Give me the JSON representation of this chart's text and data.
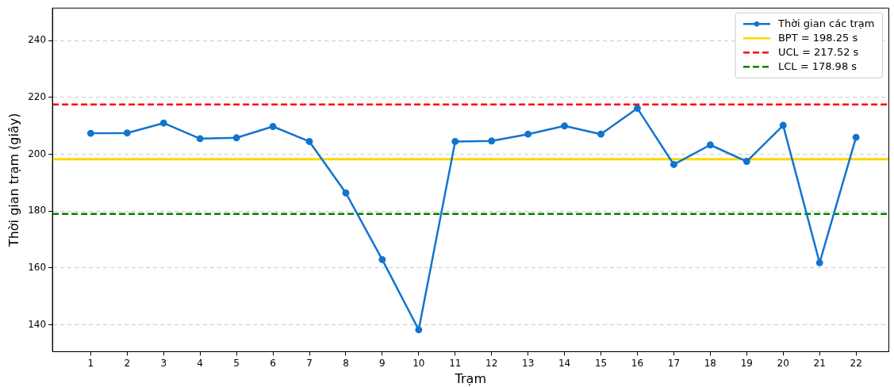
{
  "chart_data": {
    "type": "line",
    "xlabel": "Trạm",
    "ylabel": "Thời gian trạm (giây)",
    "x": [
      1,
      2,
      3,
      4,
      5,
      6,
      7,
      8,
      9,
      10,
      11,
      12,
      13,
      14,
      15,
      16,
      17,
      18,
      19,
      20,
      21,
      22
    ],
    "series": [
      {
        "name": "Thời gian các trạm",
        "color": "#1274cf",
        "values": [
          207.4,
          207.5,
          211,
          205.5,
          205.8,
          209.8,
          204.5,
          186.4,
          162.9,
          138.2,
          204.5,
          204.7,
          207.1,
          210,
          207.1,
          216.2,
          196.4,
          203.3,
          197.5,
          210.2,
          161.8,
          206
        ]
      }
    ],
    "ref_lines": [
      {
        "axis": "y",
        "value": 198.25,
        "label": "BPT = 198.25 s",
        "color": "#ffd700",
        "line_style": "solid"
      },
      {
        "axis": "y",
        "value": 217.52,
        "label": "UCL = 217.52 s",
        "color": "#ff0000",
        "line_style": "dashed"
      },
      {
        "axis": "y",
        "value": 178.98,
        "label": "LCL = 178.98 s",
        "color": "#008000",
        "line_style": "dashed"
      }
    ],
    "xlim": [
      -0.05,
      22.9
    ],
    "xticks": [
      1,
      2,
      3,
      4,
      5,
      6,
      7,
      8,
      9,
      10,
      11,
      12,
      13,
      14,
      15,
      16,
      17,
      18,
      19,
      20,
      21,
      22
    ],
    "ylim": [
      130.5,
      251.5
    ],
    "yticks": [
      140,
      160,
      180,
      200,
      220,
      240
    ],
    "grid": "y",
    "legend": "top right",
    "marker": "circle",
    "line_style": "solid"
  }
}
